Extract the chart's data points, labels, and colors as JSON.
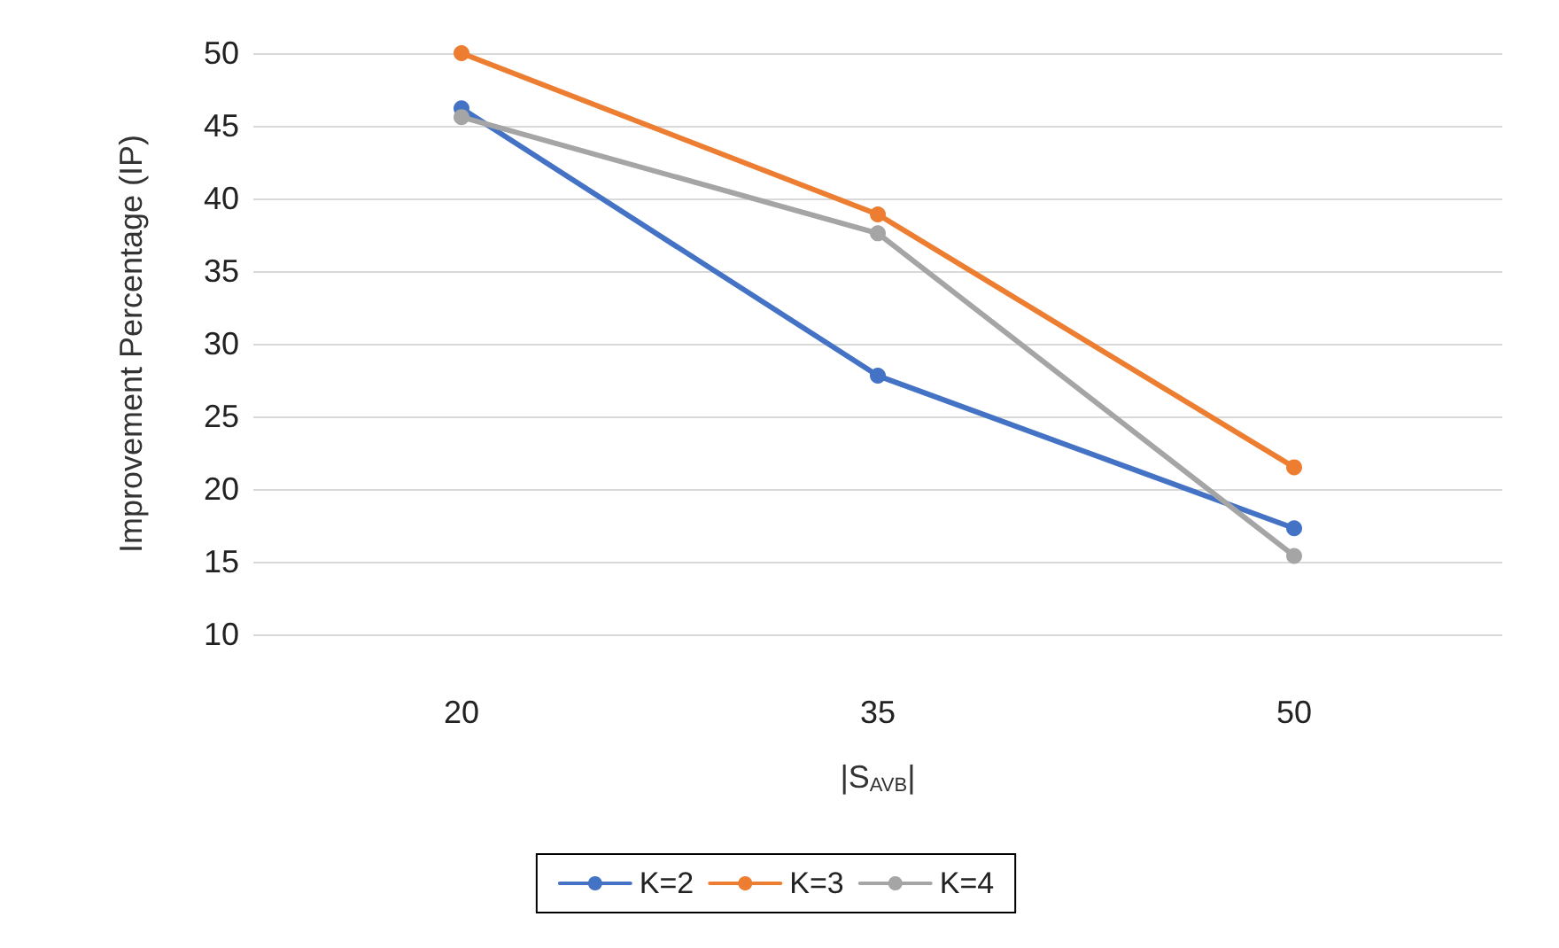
{
  "chart_data": {
    "type": "line",
    "xlabel": "|S$_{AVB}$|",
    "ylabel": "Improvement Percentage (IP)",
    "categories": [
      "20",
      "35",
      "50"
    ],
    "series": [
      {
        "name": "K=2",
        "color": "#4472c4",
        "values": [
          46.2,
          27.8,
          17.3
        ]
      },
      {
        "name": "K=3",
        "color": "#ed7d31",
        "values": [
          50,
          38.9,
          21.5
        ]
      },
      {
        "name": "K=4",
        "color": "#a5a5a5",
        "values": [
          45.6,
          37.6,
          15.4
        ]
      }
    ],
    "ylim": [
      10,
      50
    ],
    "yticks": [
      10,
      15,
      20,
      25,
      30,
      35,
      40,
      45,
      50
    ],
    "grid": "y",
    "legend": "bottom",
    "marker": "circle",
    "line_style": "solid"
  }
}
